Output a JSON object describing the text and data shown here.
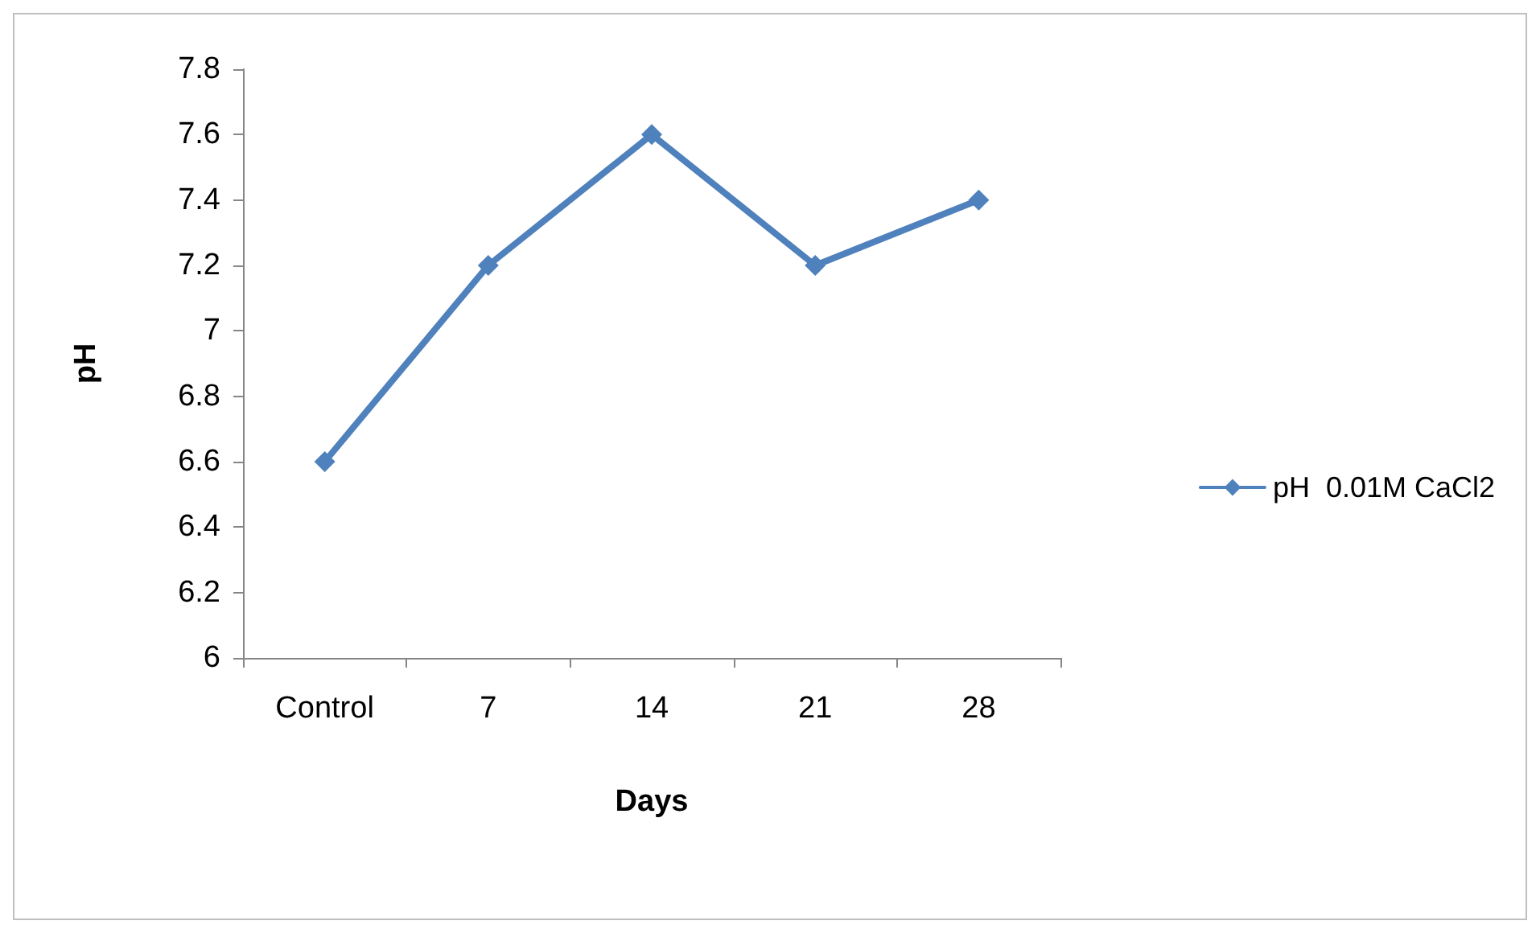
{
  "chart_data": {
    "type": "line",
    "xlabel": "Days",
    "ylabel": "pH",
    "categories": [
      "Control",
      "7",
      "14",
      "21",
      "28"
    ],
    "series": [
      {
        "name": "pH  0.01M CaCl2",
        "color": "#4f81bd",
        "values": [
          6.6,
          7.2,
          7.6,
          7.2,
          7.4
        ]
      }
    ],
    "ylim": [
      6,
      7.8
    ],
    "yticks": [
      6,
      6.2,
      6.4,
      6.6,
      6.8,
      7,
      7.2,
      7.4,
      7.6,
      7.8
    ],
    "grid": false,
    "legend": "right",
    "marker": "diamond",
    "line_style": "solid"
  }
}
